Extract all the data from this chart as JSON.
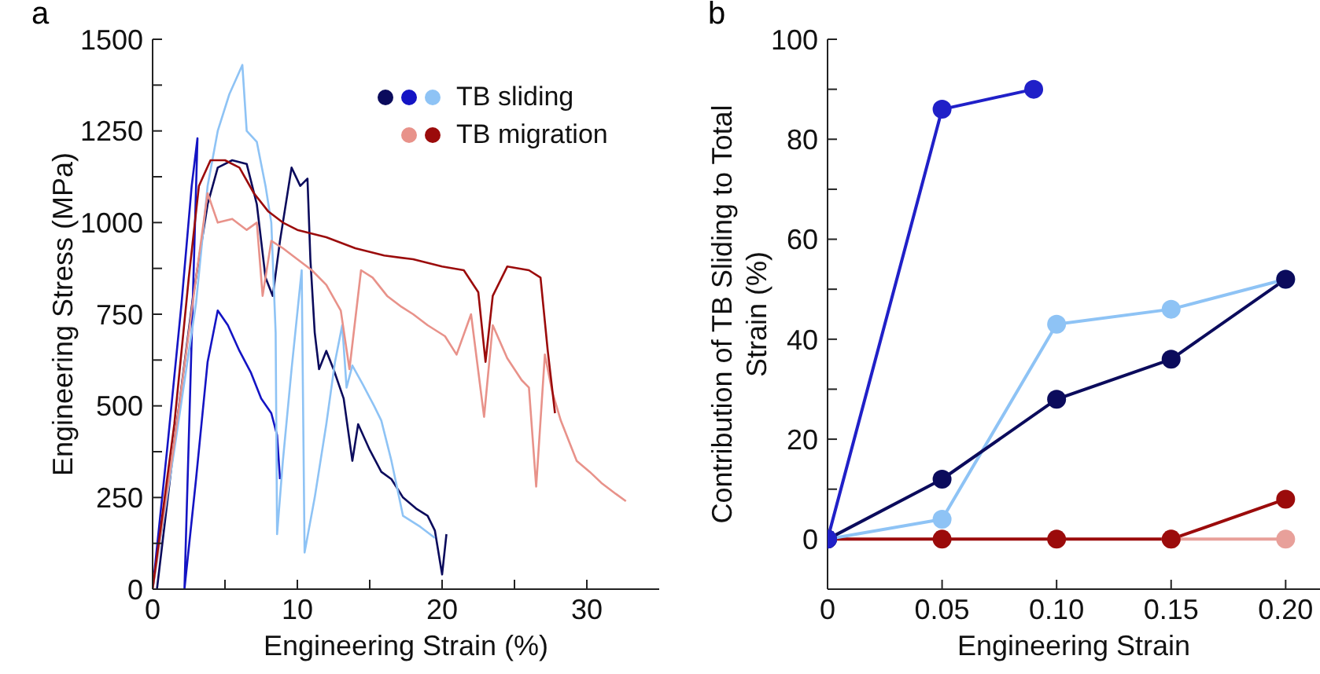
{
  "chart_data": [
    {
      "type": "line",
      "title": "a",
      "xlabel": "Engineering Strain (%)",
      "ylabel": "Engineering Stress (MPa)",
      "xlim": [
        0,
        35
      ],
      "xticks": [
        0,
        {
          "value": 5,
          "label": null
        },
        10,
        {
          "value": 15,
          "label": null
        },
        20,
        {
          "value": 25,
          "label": null
        },
        30
      ],
      "ylim": [
        0,
        1500
      ],
      "yticks": [
        0,
        {
          "value": 125,
          "label": null
        },
        250,
        {
          "value": 375,
          "label": null
        },
        500,
        {
          "value": 625,
          "label": null
        },
        750,
        {
          "value": 875,
          "label": null
        },
        1000,
        {
          "value": 1125,
          "label": null
        },
        1250,
        {
          "value": 1375,
          "label": null
        },
        1500
      ],
      "grid": false,
      "legend": "top right",
      "marker": "none",
      "line_style": "solid",
      "series": [
        {
          "color": "#0b0b5c",
          "x": [
            0.3,
            1.5,
            2.8,
            3.8,
            4.5,
            5.5,
            6.5,
            7.2,
            7.8,
            8.3,
            8.8,
            9.6,
            10.2,
            10.7,
            10.9,
            11.2,
            11.5,
            12,
            12.5,
            13.2,
            13.8,
            14.2,
            15,
            15.8,
            16.5,
            17.3,
            18.2,
            19,
            19.5,
            20,
            20.3
          ],
          "values": [
            0,
            400,
            800,
            1050,
            1150,
            1170,
            1160,
            1050,
            850,
            800,
            950,
            1150,
            1100,
            1120,
            900,
            700,
            600,
            650,
            600,
            520,
            350,
            450,
            380,
            320,
            300,
            250,
            220,
            200,
            160,
            40,
            150
          ]
        },
        {
          "color": "#1414c4",
          "x": [
            0,
            1,
            2,
            2.7,
            3.1,
            2.2,
            3,
            3.8,
            4.5,
            5.2,
            6,
            6.8,
            7.5,
            8.2,
            8.6,
            8.8
          ],
          "values": [
            0,
            380,
            780,
            1100,
            1230,
            0,
            300,
            620,
            760,
            720,
            650,
            590,
            520,
            480,
            420,
            300
          ]
        },
        {
          "name": "TB sliding",
          "color": "#8ec3f5",
          "x": [
            0,
            1.5,
            3,
            3.8,
            4.5,
            5.3,
            6.2,
            6.5,
            7.2,
            7.8,
            8.2,
            8.5,
            8.6,
            9,
            9.6,
            10.3,
            10.5,
            11.2,
            12,
            12.6,
            13.1,
            13.4,
            13.8,
            14.5,
            15.3,
            15.8,
            16.5,
            17.3,
            18.5,
            19.5
          ],
          "values": [
            0,
            380,
            780,
            1100,
            1250,
            1350,
            1430,
            1250,
            1220,
            1100,
            1000,
            700,
            150,
            350,
            600,
            870,
            100,
            250,
            450,
            620,
            720,
            550,
            610,
            560,
            500,
            460,
            350,
            200,
            170,
            140
          ]
        },
        {
          "color": "#e8928a",
          "x": [
            0,
            1.5,
            3,
            3.8,
            4.5,
            5.5,
            6.5,
            7.2,
            7.6,
            8.2,
            9,
            10,
            11,
            12,
            13,
            13.6,
            14.4,
            15.2,
            16.2,
            17.2,
            18,
            19,
            20.2,
            21,
            22,
            22.9,
            23.5,
            24.5,
            25.5,
            26,
            26.5,
            27.1,
            27.6,
            28.2,
            29.3,
            30.2,
            31,
            32,
            32.7
          ],
          "values": [
            0,
            400,
            850,
            1080,
            1000,
            1010,
            980,
            1000,
            800,
            950,
            930,
            900,
            870,
            830,
            760,
            600,
            870,
            850,
            800,
            770,
            750,
            720,
            690,
            640,
            750,
            470,
            720,
            630,
            570,
            550,
            280,
            640,
            540,
            460,
            350,
            320,
            290,
            260,
            240
          ]
        },
        {
          "name": "TB migration",
          "color": "#9b0b0b",
          "x": [
            0,
            1.5,
            2.5,
            3.2,
            4,
            5,
            6,
            7,
            8,
            9,
            10,
            12,
            14,
            16,
            18,
            20,
            21.5,
            22.5,
            23,
            23.5,
            24.5,
            26,
            26.8,
            27.3,
            27.8
          ],
          "values": [
            0,
            450,
            850,
            1100,
            1170,
            1170,
            1150,
            1080,
            1030,
            1000,
            980,
            960,
            930,
            910,
            900,
            880,
            870,
            810,
            620,
            800,
            880,
            870,
            850,
            650,
            480
          ]
        }
      ]
    },
    {
      "type": "line",
      "title": "b",
      "xlabel": "Engineering Strain",
      "ylabel": "Contribution of TB Sliding to Total Strain (%)",
      "xlim": [
        0,
        0.215
      ],
      "xticks": [
        0,
        0.05,
        {
          "value": 0.1,
          "label": "0.10"
        },
        0.15,
        {
          "value": 0.2,
          "label": "0.20"
        }
      ],
      "ylim": [
        -10,
        100
      ],
      "yticks": [
        0,
        {
          "value": 10,
          "label": null
        },
        20,
        {
          "value": 30,
          "label": null
        },
        40,
        {
          "value": 50,
          "label": null
        },
        60,
        {
          "value": 70,
          "label": null
        },
        80,
        {
          "value": 90,
          "label": null
        },
        100
      ],
      "grid": false,
      "legend": false,
      "marker": "circle",
      "line_style": "solid",
      "series": [
        {
          "color": "#e8a09a",
          "x": [
            0.15,
            0.2
          ],
          "values": [
            0,
            0
          ]
        },
        {
          "color": "#9b0b0b",
          "x": [
            0,
            0.05,
            0.1,
            0.15,
            0.2
          ],
          "values": [
            0,
            0,
            0,
            0,
            8
          ]
        },
        {
          "color": "#8ec3f5",
          "x": [
            0,
            0.05,
            0.1,
            0.15,
            0.2
          ],
          "values": [
            0,
            4,
            43,
            46,
            52
          ]
        },
        {
          "color": "#0b0b5c",
          "x": [
            0,
            0.05,
            0.1,
            0.15,
            0.2
          ],
          "values": [
            0,
            12,
            28,
            36,
            52
          ]
        },
        {
          "color": "#2020c8",
          "x": [
            0,
            0.05,
            0.09
          ],
          "values": [
            0,
            86,
            90
          ]
        }
      ]
    }
  ]
}
